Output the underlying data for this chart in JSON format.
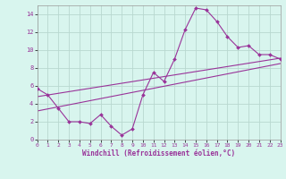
{
  "xlabel": "Windchill (Refroidissement éolien,°C)",
  "background_color": "#d8f5ee",
  "grid_color": "#b8d8d0",
  "line_color": "#993399",
  "xlim": [
    0,
    23
  ],
  "ylim": [
    0,
    15
  ],
  "xticks": [
    0,
    1,
    2,
    3,
    4,
    5,
    6,
    7,
    8,
    9,
    10,
    11,
    12,
    13,
    14,
    15,
    16,
    17,
    18,
    19,
    20,
    21,
    22,
    23
  ],
  "yticks": [
    0,
    2,
    4,
    6,
    8,
    10,
    12,
    14
  ],
  "curve1_x": [
    0,
    1,
    2,
    3,
    4,
    5,
    6,
    7,
    8,
    9,
    10,
    11,
    12,
    13,
    14,
    15,
    16,
    17,
    18,
    19,
    20,
    21,
    22,
    23
  ],
  "curve1_y": [
    5.7,
    5.0,
    3.5,
    2.0,
    2.0,
    1.8,
    2.8,
    1.5,
    0.5,
    1.2,
    5.0,
    7.5,
    6.5,
    9.0,
    12.3,
    14.7,
    14.5,
    13.2,
    11.5,
    10.3,
    10.5,
    9.5,
    9.5,
    9.0
  ],
  "curve2_x": [
    0,
    23
  ],
  "curve2_y": [
    4.8,
    9.1
  ],
  "curve3_x": [
    0,
    23
  ],
  "curve3_y": [
    3.2,
    8.5
  ]
}
